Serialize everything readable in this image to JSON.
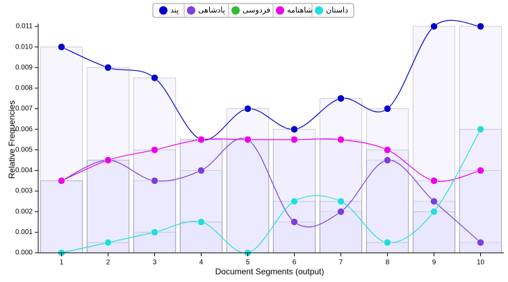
{
  "chart_data": {
    "type": "line",
    "x_label": "Document Segments (output)",
    "y_label": "Relative Frequencies",
    "categories": [
      "1",
      "2",
      "3",
      "4",
      "5",
      "6",
      "7",
      "8",
      "9",
      "10"
    ],
    "series": [
      {
        "name": "پند",
        "color": "#0000cc",
        "values": [
          0.01,
          0.009,
          0.0085,
          0.0055,
          0.007,
          0.006,
          0.0075,
          0.007,
          0.011,
          0.011
        ]
      },
      {
        "name": "پادشاهی",
        "color": "#7b3fe0",
        "values": [
          0.0035,
          0.0045,
          0.0035,
          0.004,
          0.0055,
          0.0015,
          0.002,
          0.0045,
          0.0025,
          0.0005
        ]
      },
      {
        "name": "فردوسی",
        "color": "#33bb33",
        "values": [
          null,
          null,
          null,
          null,
          null,
          null,
          null,
          null,
          null,
          null
        ]
      },
      {
        "name": "شاهنامه",
        "color": "#ee00ee",
        "values": [
          0.0035,
          0.0045,
          0.005,
          0.0055,
          0.0055,
          0.0055,
          0.0055,
          0.005,
          0.0035,
          0.004
        ]
      },
      {
        "name": "داستان",
        "color": "#22dddd",
        "values": [
          0,
          0.0005,
          0.001,
          0.0015,
          0,
          0.0025,
          0.0025,
          0.0005,
          0.002,
          0.006
        ]
      }
    ],
    "ylim": [
      0,
      0.011
    ],
    "yticks": [
      {
        "value": 0,
        "label": "0.000"
      },
      {
        "value": 0.001,
        "label": "0.001"
      },
      {
        "value": 0.002,
        "label": "0.002"
      },
      {
        "value": 0.003,
        "label": "0.003"
      },
      {
        "value": 0.004,
        "label": "0.004"
      },
      {
        "value": 0.005,
        "label": "0.005"
      },
      {
        "value": 0.006,
        "label": "0.006"
      },
      {
        "value": 0.007,
        "label": "0.007"
      },
      {
        "value": 0.008,
        "label": "0.008"
      },
      {
        "value": 0.009,
        "label": "0.009"
      },
      {
        "value": 0.01,
        "label": "0.010"
      },
      {
        "value": 0.011,
        "label": "0.011"
      }
    ],
    "grid": false,
    "legend": "top"
  }
}
